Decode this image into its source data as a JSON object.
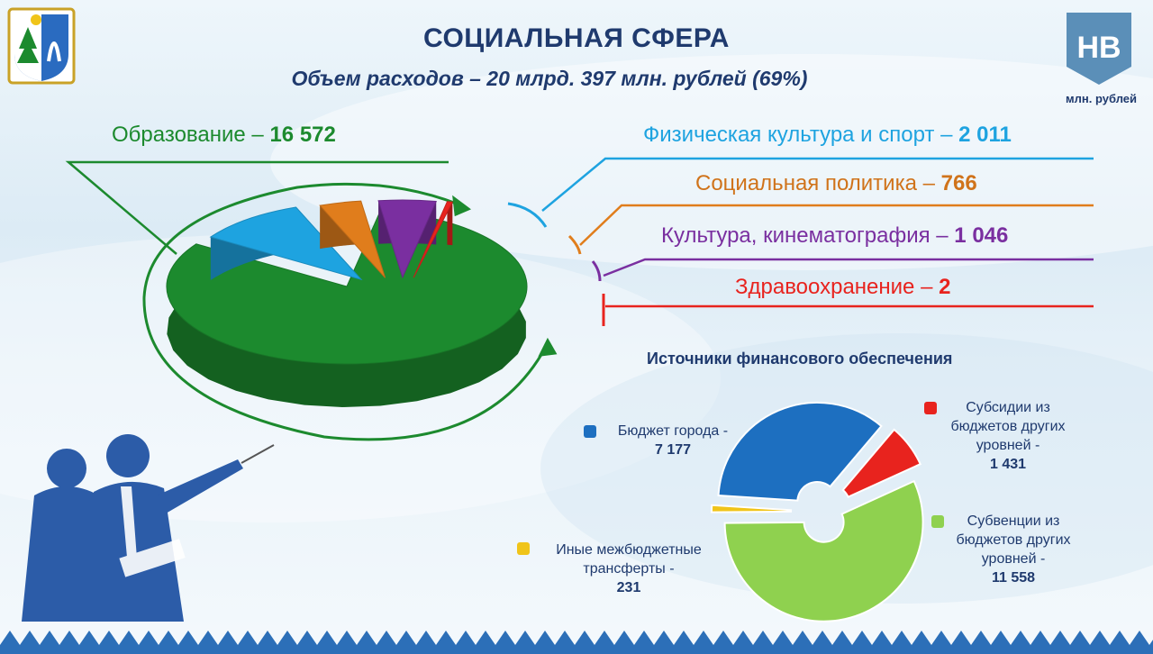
{
  "header": {
    "title": "СОЦИАЛЬНАЯ СФЕРА",
    "subtitle": "Объем расходов – 20 млрд. 397 млн. рублей (69%)",
    "units": "млн. рублей",
    "logo_text": "НВ"
  },
  "colors": {
    "education": "#1c8a2e",
    "sport": "#1ea3e0",
    "social": "#e07d1c",
    "culture": "#7a2fa0",
    "health": "#e8231e",
    "city_budget": "#1d6fc0",
    "subsidies": "#e8231e",
    "subventions": "#8fd14f",
    "transfers": "#f0c419",
    "title": "#1f3a6e"
  },
  "labels": {
    "education": {
      "name": "Образование – ",
      "value": "16 572"
    },
    "sport": {
      "name": "Физическая культура и спорт – ",
      "value": "2 011"
    },
    "social": {
      "name": "Социальная политика – ",
      "value": "766"
    },
    "culture": {
      "name": "Культура, кинематография – ",
      "value": "1 046"
    },
    "health": {
      "name": "Здравоохранение – ",
      "value": "2"
    }
  },
  "sources": {
    "title": "Источники финансового обеспечения",
    "city_budget": {
      "line1": "Бюджет города -",
      "value": "7 177"
    },
    "subsidies": {
      "line1": "Субсидии из",
      "line2": "бюджетов других",
      "line3": "уровней -",
      "value": "1 431"
    },
    "subventions": {
      "line1": "Субвенции из",
      "line2": "бюджетов других",
      "line3": "уровней -",
      "value": "11 558"
    },
    "transfers": {
      "line1": "Иные межбюджетные",
      "line2": "трансферты -",
      "value": "231"
    }
  },
  "chart_data": [
    {
      "type": "pie",
      "title": "СОЦИАЛЬНАЯ СФЕРА",
      "categories": [
        "Образование",
        "Физическая культура и спорт",
        "Социальная политика",
        "Культура, кинематография",
        "Здравоохранение"
      ],
      "values": [
        16572,
        2011,
        766,
        1046,
        2
      ]
    },
    {
      "type": "pie",
      "title": "Источники финансового обеспечения",
      "categories": [
        "Бюджет города",
        "Субсидии из бюджетов других уровней",
        "Субвенции из бюджетов других уровней",
        "Иные межбюджетные трансферты"
      ],
      "values": [
        7177,
        1431,
        11558,
        231
      ]
    }
  ]
}
